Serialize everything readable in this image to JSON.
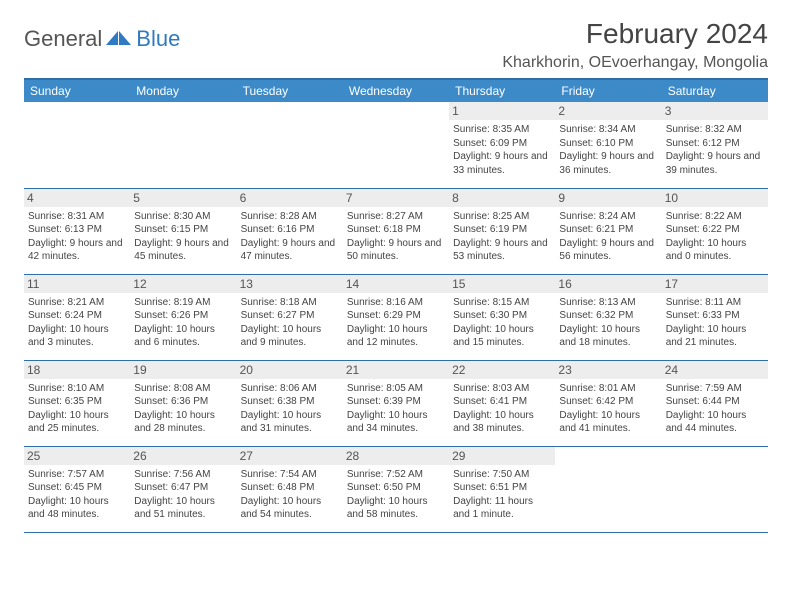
{
  "logo": {
    "general": "General",
    "blue": "Blue",
    "triangle_color": "#2f7ac0"
  },
  "title": "February 2024",
  "location": "Kharkhorin, OEvoerhangay, Mongolia",
  "header_bg": "#3d8ac9",
  "border_color": "#2f6fa8",
  "daynum_bg": "#ededed",
  "days": [
    "Sunday",
    "Monday",
    "Tuesday",
    "Wednesday",
    "Thursday",
    "Friday",
    "Saturday"
  ],
  "weeks": [
    [
      null,
      null,
      null,
      null,
      {
        "n": "1",
        "sr": "8:35 AM",
        "ss": "6:09 PM",
        "dl": "9 hours and 33 minutes."
      },
      {
        "n": "2",
        "sr": "8:34 AM",
        "ss": "6:10 PM",
        "dl": "9 hours and 36 minutes."
      },
      {
        "n": "3",
        "sr": "8:32 AM",
        "ss": "6:12 PM",
        "dl": "9 hours and 39 minutes."
      }
    ],
    [
      {
        "n": "4",
        "sr": "8:31 AM",
        "ss": "6:13 PM",
        "dl": "9 hours and 42 minutes."
      },
      {
        "n": "5",
        "sr": "8:30 AM",
        "ss": "6:15 PM",
        "dl": "9 hours and 45 minutes."
      },
      {
        "n": "6",
        "sr": "8:28 AM",
        "ss": "6:16 PM",
        "dl": "9 hours and 47 minutes."
      },
      {
        "n": "7",
        "sr": "8:27 AM",
        "ss": "6:18 PM",
        "dl": "9 hours and 50 minutes."
      },
      {
        "n": "8",
        "sr": "8:25 AM",
        "ss": "6:19 PM",
        "dl": "9 hours and 53 minutes."
      },
      {
        "n": "9",
        "sr": "8:24 AM",
        "ss": "6:21 PM",
        "dl": "9 hours and 56 minutes."
      },
      {
        "n": "10",
        "sr": "8:22 AM",
        "ss": "6:22 PM",
        "dl": "10 hours and 0 minutes."
      }
    ],
    [
      {
        "n": "11",
        "sr": "8:21 AM",
        "ss": "6:24 PM",
        "dl": "10 hours and 3 minutes."
      },
      {
        "n": "12",
        "sr": "8:19 AM",
        "ss": "6:26 PM",
        "dl": "10 hours and 6 minutes."
      },
      {
        "n": "13",
        "sr": "8:18 AM",
        "ss": "6:27 PM",
        "dl": "10 hours and 9 minutes."
      },
      {
        "n": "14",
        "sr": "8:16 AM",
        "ss": "6:29 PM",
        "dl": "10 hours and 12 minutes."
      },
      {
        "n": "15",
        "sr": "8:15 AM",
        "ss": "6:30 PM",
        "dl": "10 hours and 15 minutes."
      },
      {
        "n": "16",
        "sr": "8:13 AM",
        "ss": "6:32 PM",
        "dl": "10 hours and 18 minutes."
      },
      {
        "n": "17",
        "sr": "8:11 AM",
        "ss": "6:33 PM",
        "dl": "10 hours and 21 minutes."
      }
    ],
    [
      {
        "n": "18",
        "sr": "8:10 AM",
        "ss": "6:35 PM",
        "dl": "10 hours and 25 minutes."
      },
      {
        "n": "19",
        "sr": "8:08 AM",
        "ss": "6:36 PM",
        "dl": "10 hours and 28 minutes."
      },
      {
        "n": "20",
        "sr": "8:06 AM",
        "ss": "6:38 PM",
        "dl": "10 hours and 31 minutes."
      },
      {
        "n": "21",
        "sr": "8:05 AM",
        "ss": "6:39 PM",
        "dl": "10 hours and 34 minutes."
      },
      {
        "n": "22",
        "sr": "8:03 AM",
        "ss": "6:41 PM",
        "dl": "10 hours and 38 minutes."
      },
      {
        "n": "23",
        "sr": "8:01 AM",
        "ss": "6:42 PM",
        "dl": "10 hours and 41 minutes."
      },
      {
        "n": "24",
        "sr": "7:59 AM",
        "ss": "6:44 PM",
        "dl": "10 hours and 44 minutes."
      }
    ],
    [
      {
        "n": "25",
        "sr": "7:57 AM",
        "ss": "6:45 PM",
        "dl": "10 hours and 48 minutes."
      },
      {
        "n": "26",
        "sr": "7:56 AM",
        "ss": "6:47 PM",
        "dl": "10 hours and 51 minutes."
      },
      {
        "n": "27",
        "sr": "7:54 AM",
        "ss": "6:48 PM",
        "dl": "10 hours and 54 minutes."
      },
      {
        "n": "28",
        "sr": "7:52 AM",
        "ss": "6:50 PM",
        "dl": "10 hours and 58 minutes."
      },
      {
        "n": "29",
        "sr": "7:50 AM",
        "ss": "6:51 PM",
        "dl": "11 hours and 1 minute."
      },
      null,
      null
    ]
  ],
  "labels": {
    "sunrise": "Sunrise:",
    "sunset": "Sunset:",
    "daylight": "Daylight:"
  }
}
